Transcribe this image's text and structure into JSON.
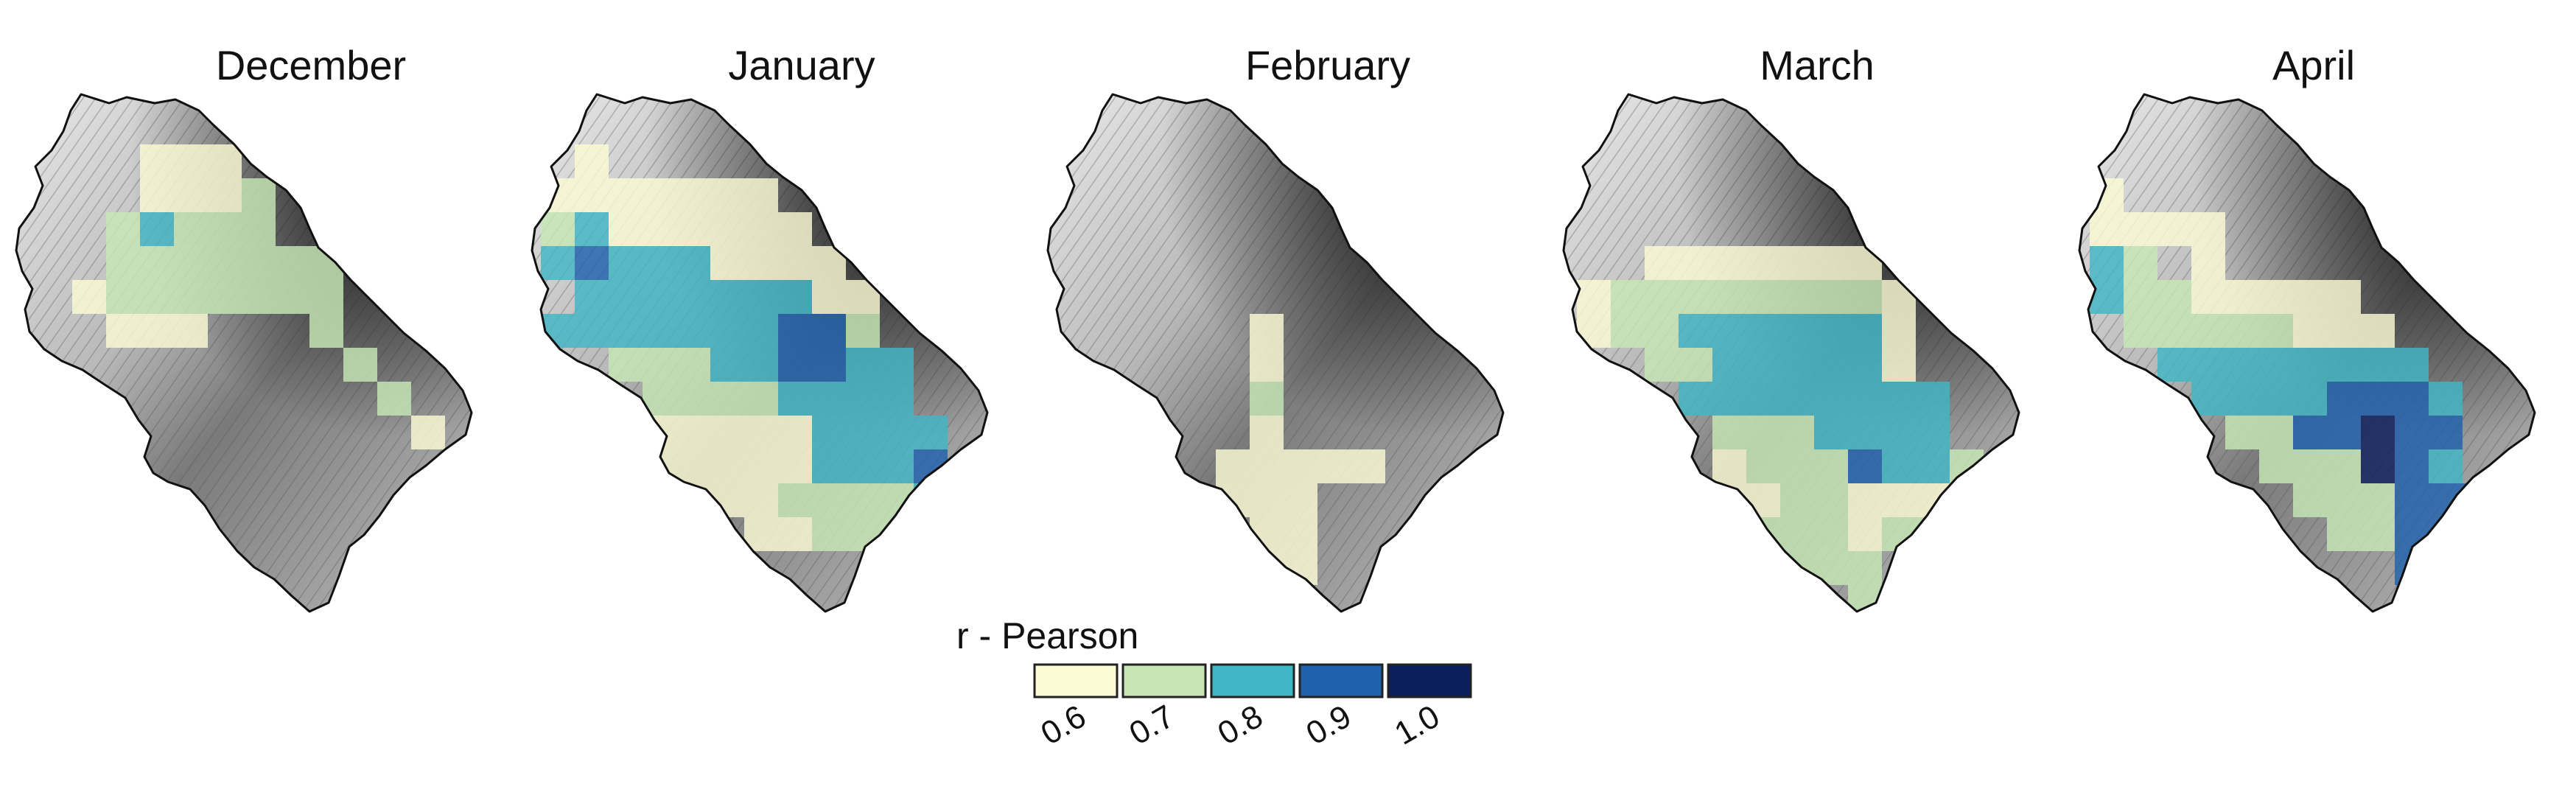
{
  "panels": [
    {
      "title": "December"
    },
    {
      "title": "January"
    },
    {
      "title": "February"
    },
    {
      "title": "March"
    },
    {
      "title": "April"
    }
  ],
  "legend": {
    "title": "r - Pearson",
    "classes": [
      {
        "label": "0.6",
        "color": "#fbfbd6"
      },
      {
        "label": "0.7",
        "color": "#c7e6b4"
      },
      {
        "label": "0.8",
        "color": "#41b6c4"
      },
      {
        "label": "0.9",
        "color": "#2061ad"
      },
      {
        "label": "1.0",
        "color": "#0d1e5c"
      }
    ]
  },
  "colors": {
    "terrain_light": "#f2f2f2",
    "terrain_mid": "#9a9a9a",
    "terrain_dark": "#1a1a1a",
    "outline": "#111111"
  }
}
